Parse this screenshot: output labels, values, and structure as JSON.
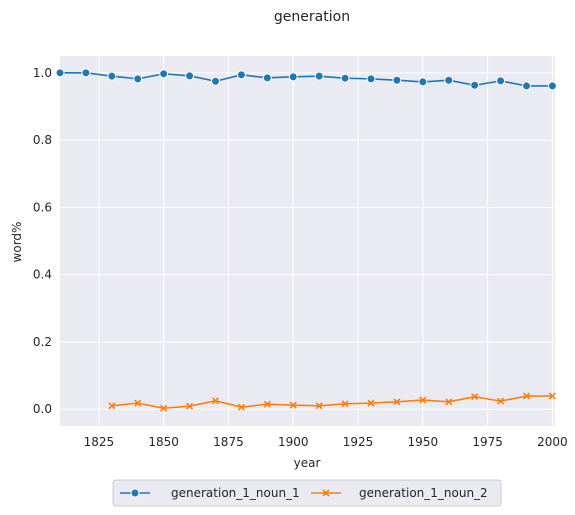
{
  "chart_data": {
    "type": "line",
    "title": "generation",
    "xlabel": "year",
    "ylabel": "word%",
    "xlim": [
      1810,
      2001
    ],
    "ylim": [
      -0.05,
      1.05
    ],
    "xticks": [
      1825,
      1850,
      1875,
      1900,
      1925,
      1950,
      1975,
      2000
    ],
    "yticks": [
      0.0,
      0.2,
      0.4,
      0.6,
      0.8,
      1.0
    ],
    "ytick_labels": [
      "0.0",
      "0.2",
      "0.4",
      "0.6",
      "0.8",
      "1.0"
    ],
    "grid": true,
    "legend_position": "bottom-center",
    "series": [
      {
        "name": "generation_1_noun_1",
        "color": "#1f77b4",
        "marker": "circle",
        "x": [
          1810,
          1820,
          1830,
          1840,
          1850,
          1860,
          1870,
          1880,
          1890,
          1900,
          1910,
          1920,
          1930,
          1940,
          1950,
          1960,
          1970,
          1980,
          1990,
          2000
        ],
        "y": [
          1.0,
          1.0,
          0.99,
          0.982,
          0.997,
          0.991,
          0.975,
          0.994,
          0.985,
          0.988,
          0.99,
          0.984,
          0.982,
          0.978,
          0.973,
          0.978,
          0.963,
          0.976,
          0.961,
          0.961
        ]
      },
      {
        "name": "generation_1_noun_2",
        "color": "#ff7f0e",
        "marker": "x",
        "x": [
          1830,
          1840,
          1850,
          1860,
          1870,
          1880,
          1890,
          1900,
          1910,
          1920,
          1930,
          1940,
          1950,
          1960,
          1970,
          1980,
          1990,
          2000
        ],
        "y": [
          0.01,
          0.018,
          0.003,
          0.009,
          0.025,
          0.006,
          0.015,
          0.012,
          0.01,
          0.016,
          0.018,
          0.022,
          0.027,
          0.022,
          0.037,
          0.024,
          0.039,
          0.039
        ]
      }
    ]
  }
}
